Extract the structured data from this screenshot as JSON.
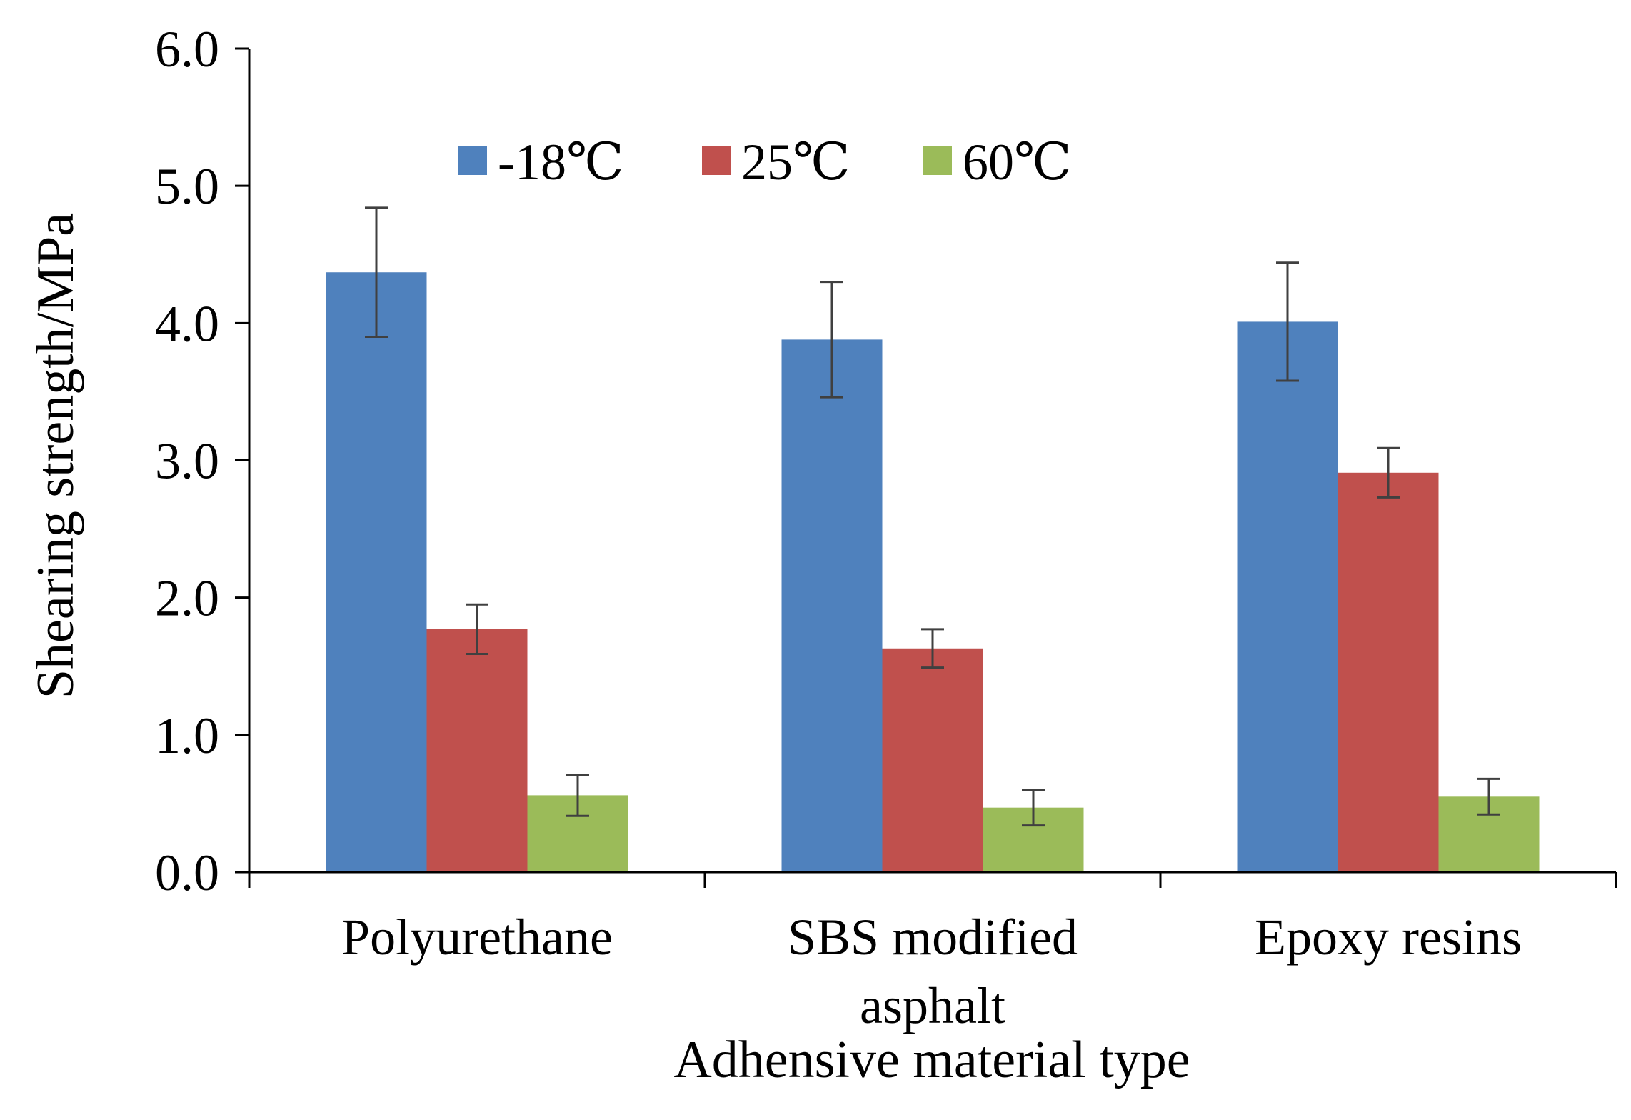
{
  "chart_data": {
    "type": "bar",
    "title": "",
    "xlabel": "Adhensive material type",
    "ylabel": "Shearing strength/MPa",
    "ylim": [
      0,
      6
    ],
    "yticks": [
      "0.0",
      "1.0",
      "2.0",
      "3.0",
      "4.0",
      "5.0",
      "6.0"
    ],
    "categories": [
      [
        "Polyurethane"
      ],
      [
        "SBS modified",
        "asphalt"
      ],
      [
        "Epoxy resins"
      ]
    ],
    "legend_position": "top",
    "series": [
      {
        "name": "-18℃",
        "color": "#4F81BD",
        "values": [
          4.37,
          3.88,
          4.01
        ],
        "errors": [
          0.47,
          0.42,
          0.43
        ]
      },
      {
        "name": "25℃",
        "color": "#C0504D",
        "values": [
          1.77,
          1.63,
          2.91
        ],
        "errors": [
          0.18,
          0.14,
          0.18
        ]
      },
      {
        "name": "60℃",
        "color": "#9BBB59",
        "values": [
          0.56,
          0.47,
          0.55
        ],
        "errors": [
          0.15,
          0.13,
          0.13
        ]
      }
    ]
  }
}
